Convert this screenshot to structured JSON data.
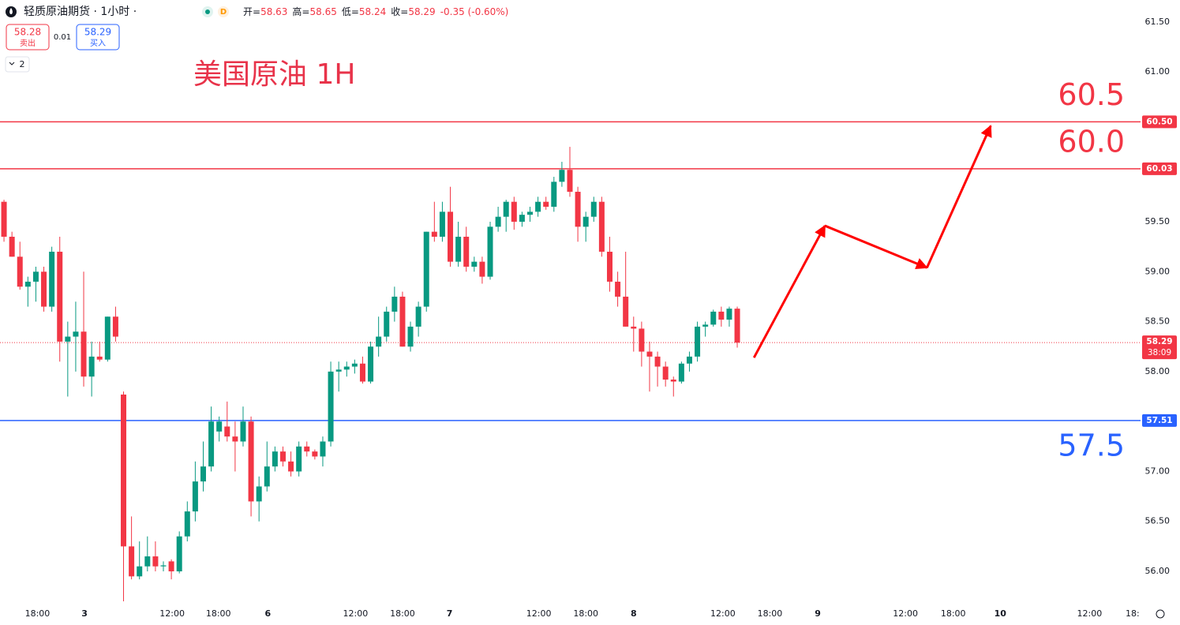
{
  "chart_data": {
    "type": "candlestick",
    "header": {
      "symbol": "轻质原油期货 · 1小时 ·",
      "badge": "D",
      "ohlc": [
        {
          "label": "开=",
          "value": 58.63
        },
        {
          "label": "高=",
          "value": 58.65
        },
        {
          "label": "低=",
          "value": 58.24
        },
        {
          "label": "收=",
          "value": 58.29
        }
      ],
      "change": "-0.35 (-0.60%)",
      "sell": {
        "price": 58.28,
        "label": "卖出"
      },
      "spread": 0.01,
      "buy": {
        "price": 58.29,
        "label": "买入"
      },
      "indicators": 2
    },
    "title": "美国原油 1H",
    "up_color": "#089981",
    "down_color": "#f23645",
    "candles": [
      [
        59.7,
        59.72,
        59.3,
        59.35
      ],
      [
        59.35,
        59.4,
        59.15,
        59.15
      ],
      [
        59.15,
        59.3,
        58.82,
        58.85
      ],
      [
        58.85,
        58.95,
        58.65,
        58.9
      ],
      [
        58.9,
        59.05,
        58.7,
        59.0
      ],
      [
        59.0,
        59.05,
        58.6,
        58.65
      ],
      [
        58.65,
        59.25,
        58.6,
        59.2
      ],
      [
        59.2,
        59.35,
        58.1,
        58.3
      ],
      [
        58.3,
        58.5,
        57.75,
        58.35
      ],
      [
        58.35,
        58.7,
        58.0,
        58.4
      ],
      [
        58.4,
        59.0,
        57.85,
        57.95
      ],
      [
        57.95,
        58.3,
        57.75,
        58.15
      ],
      [
        58.15,
        58.3,
        58.1,
        58.12
      ],
      [
        58.12,
        58.55,
        58.1,
        58.55
      ],
      [
        58.55,
        58.65,
        58.3,
        58.35
      ],
      [
        57.77,
        57.8,
        55.7,
        56.25
      ],
      [
        56.25,
        56.55,
        55.92,
        55.95
      ],
      [
        55.95,
        56.3,
        55.92,
        56.05
      ],
      [
        56.05,
        56.35,
        56.0,
        56.15
      ],
      [
        56.15,
        56.3,
        56.0,
        56.05
      ],
      [
        56.05,
        56.1,
        56.0,
        56.06
      ],
      [
        56.1,
        56.12,
        55.92,
        56.0
      ],
      [
        56.0,
        56.4,
        55.98,
        56.35
      ],
      [
        56.35,
        56.7,
        56.3,
        56.6
      ],
      [
        56.6,
        57.1,
        56.5,
        56.9
      ],
      [
        56.9,
        57.3,
        56.8,
        57.05
      ],
      [
        57.05,
        57.65,
        57.0,
        57.5
      ],
      [
        57.4,
        57.55,
        57.3,
        57.5
      ],
      [
        57.45,
        57.7,
        57.3,
        57.35
      ],
      [
        57.35,
        57.5,
        57.0,
        57.3
      ],
      [
        57.3,
        57.65,
        57.25,
        57.5
      ],
      [
        57.5,
        57.55,
        56.55,
        56.7
      ],
      [
        56.7,
        56.95,
        56.5,
        56.85
      ],
      [
        56.85,
        57.3,
        56.8,
        57.05
      ],
      [
        57.05,
        57.25,
        57.0,
        57.2
      ],
      [
        57.2,
        57.25,
        57.05,
        57.1
      ],
      [
        57.1,
        57.2,
        56.95,
        57.0
      ],
      [
        57.0,
        57.3,
        56.95,
        57.25
      ],
      [
        57.25,
        57.3,
        57.15,
        57.2
      ],
      [
        57.2,
        57.22,
        57.12,
        57.15
      ],
      [
        57.15,
        57.35,
        57.05,
        57.3
      ],
      [
        57.3,
        58.1,
        57.25,
        58.0
      ],
      [
        58.0,
        58.1,
        57.8,
        58.02
      ],
      [
        58.02,
        58.1,
        57.95,
        58.05
      ],
      [
        58.05,
        58.12,
        57.98,
        58.08
      ],
      [
        58.08,
        58.15,
        57.88,
        57.9
      ],
      [
        57.9,
        58.3,
        57.88,
        58.25
      ],
      [
        58.25,
        58.55,
        58.15,
        58.35
      ],
      [
        58.35,
        58.65,
        58.3,
        58.6
      ],
      [
        58.6,
        58.85,
        58.5,
        58.75
      ],
      [
        58.75,
        58.8,
        58.25,
        58.25
      ],
      [
        58.25,
        58.5,
        58.2,
        58.45
      ],
      [
        58.45,
        58.7,
        58.35,
        58.65
      ],
      [
        58.65,
        59.4,
        58.6,
        59.4
      ],
      [
        59.4,
        59.7,
        59.3,
        59.35
      ],
      [
        59.35,
        59.7,
        59.3,
        59.6
      ],
      [
        59.6,
        59.85,
        59.05,
        59.1
      ],
      [
        59.1,
        59.5,
        59.05,
        59.35
      ],
      [
        59.35,
        59.45,
        59.0,
        59.05
      ],
      [
        59.05,
        59.15,
        59.0,
        59.1
      ],
      [
        59.1,
        59.15,
        58.88,
        58.95
      ],
      [
        58.95,
        59.5,
        58.92,
        59.45
      ],
      [
        59.45,
        59.65,
        59.4,
        59.55
      ],
      [
        59.55,
        59.72,
        59.4,
        59.7
      ],
      [
        59.7,
        59.75,
        59.42,
        59.5
      ],
      [
        59.5,
        59.6,
        59.45,
        59.57
      ],
      [
        59.57,
        59.65,
        59.5,
        59.6
      ],
      [
        59.6,
        59.75,
        59.55,
        59.7
      ],
      [
        59.7,
        59.75,
        59.62,
        59.65
      ],
      [
        59.65,
        59.95,
        59.6,
        59.9
      ],
      [
        59.9,
        60.1,
        59.85,
        60.02
      ],
      [
        60.02,
        60.25,
        59.75,
        59.8
      ],
      [
        59.8,
        59.85,
        59.3,
        59.45
      ],
      [
        59.45,
        59.6,
        59.3,
        59.55
      ],
      [
        59.55,
        59.75,
        59.5,
        59.7
      ],
      [
        59.7,
        59.75,
        59.15,
        59.2
      ],
      [
        59.2,
        59.35,
        58.8,
        58.9
      ],
      [
        58.9,
        59.0,
        58.65,
        58.75
      ],
      [
        58.75,
        59.2,
        58.45,
        58.45
      ],
      [
        58.45,
        58.55,
        58.2,
        58.43
      ],
      [
        58.43,
        58.5,
        58.05,
        58.2
      ],
      [
        58.2,
        58.3,
        57.8,
        58.15
      ],
      [
        58.15,
        58.2,
        57.85,
        58.05
      ],
      [
        58.05,
        58.1,
        57.85,
        57.92
      ],
      [
        57.92,
        57.95,
        57.75,
        57.9
      ],
      [
        57.9,
        58.1,
        57.88,
        58.08
      ],
      [
        58.08,
        58.2,
        58.0,
        58.15
      ],
      [
        58.15,
        58.5,
        58.1,
        58.45
      ],
      [
        58.45,
        58.5,
        58.35,
        58.47
      ],
      [
        58.47,
        58.62,
        58.45,
        58.6
      ],
      [
        58.6,
        58.65,
        58.45,
        58.52
      ],
      [
        58.52,
        58.65,
        58.45,
        58.63
      ],
      [
        58.63,
        58.65,
        58.24,
        58.29
      ]
    ],
    "xlim": [
      -0.5,
      142.6
    ],
    "ylim": [
      55.7,
      61.72
    ],
    "yticks": [
      {
        "value": 56.0,
        "label": "56.00"
      },
      {
        "value": 56.5,
        "label": "56.50"
      },
      {
        "value": 57.0,
        "label": "57.00"
      },
      {
        "value": 57.5,
        "label": "57.50"
      },
      {
        "value": 58.0,
        "label": "58.00"
      },
      {
        "value": 58.5,
        "label": "58.50"
      },
      {
        "value": 59.0,
        "label": "59.00"
      },
      {
        "value": 59.5,
        "label": "59.50"
      },
      {
        "value": 60.0,
        "label": "60.00"
      },
      {
        "value": 60.5,
        "label": "60.50"
      },
      {
        "value": 61.0,
        "label": "61.00"
      },
      {
        "value": 61.5,
        "label": "61.50"
      }
    ],
    "xticks": [
      {
        "value": 4.2,
        "label": "18:00"
      },
      {
        "value": 10.1,
        "label": "3"
      },
      {
        "value": 21.1,
        "label": "12:00"
      },
      {
        "value": 26.9,
        "label": "18:00"
      },
      {
        "value": 33.1,
        "label": "6"
      },
      {
        "value": 44.1,
        "label": "12:00"
      },
      {
        "value": 50,
        "label": "18:00"
      },
      {
        "value": 55.9,
        "label": "7"
      },
      {
        "value": 67.1,
        "label": "12:00"
      },
      {
        "value": 73,
        "label": "18:00"
      },
      {
        "value": 79,
        "label": "8"
      },
      {
        "value": 90.2,
        "label": "12:00"
      },
      {
        "value": 96.1,
        "label": "18:00"
      },
      {
        "value": 102.1,
        "label": "9"
      },
      {
        "value": 113.1,
        "label": "12:00"
      },
      {
        "value": 119.1,
        "label": "18:00"
      },
      {
        "value": 125,
        "label": "10"
      },
      {
        "value": 136.2,
        "label": "12:00"
      },
      {
        "value": 141.6,
        "label": "18:"
      }
    ],
    "levels": [
      {
        "value": 60.5,
        "label": "60.50",
        "color": "#f23645",
        "note": "60.5"
      },
      {
        "value": 60.03,
        "label": "60.03",
        "color": "#f23645",
        "note": "60.0"
      },
      {
        "value": 57.51,
        "label": "57.51",
        "color": "#2962ff",
        "note": "57.5"
      }
    ],
    "last_price": {
      "value": 58.29,
      "label": "58.29",
      "countdown": "38:09",
      "color": "#f23645"
    },
    "forecast": {
      "color": "#ff0000",
      "x": [
        94.1,
        103,
        115.8,
        123.8
      ],
      "y": [
        58.14,
        59.46,
        59.04,
        60.46
      ]
    }
  }
}
